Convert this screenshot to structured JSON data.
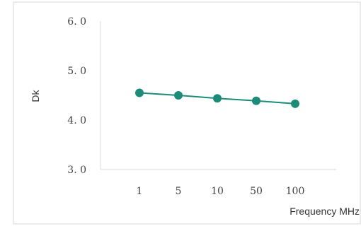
{
  "chart_data": {
    "type": "line",
    "title": "",
    "xlabel": "Frequency MHz",
    "ylabel": "Dk",
    "categories": [
      "1",
      "5",
      "10",
      "50",
      "100"
    ],
    "series": [
      {
        "values": [
          4.55,
          4.5,
          4.44,
          4.39,
          4.33
        ]
      }
    ],
    "ylim": [
      3.0,
      6.0
    ],
    "yticks": [
      "3. 0",
      "4. 0",
      "5. 0",
      "6. 0"
    ],
    "grid": false,
    "legend": "none",
    "colors": {
      "series": "#1a8c78",
      "axis": "#d9d9d9",
      "frame": "#d9d9d9"
    }
  }
}
